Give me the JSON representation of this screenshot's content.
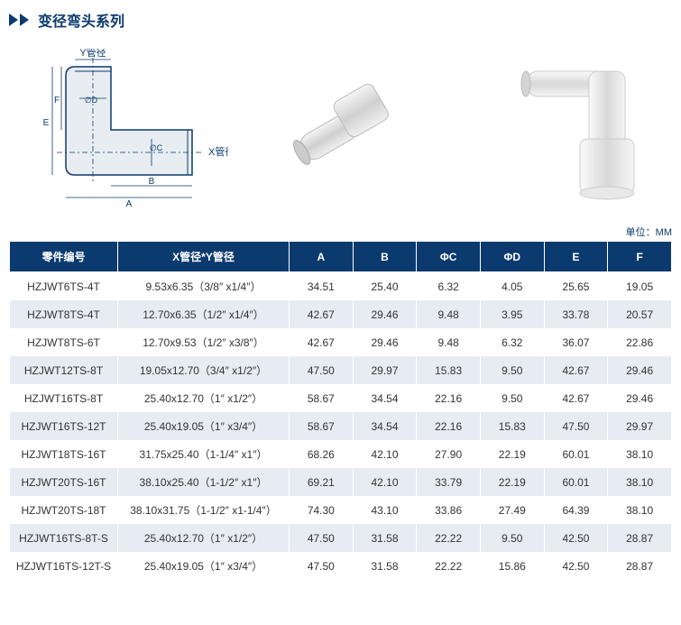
{
  "title": "变径弯头系列",
  "unit_label": "单位：MM",
  "diagram": {
    "labels": {
      "y_pipe": "Y管径",
      "x_pipe": "X管径",
      "A": "A",
      "B": "B",
      "D": "∅D",
      "C": "∅C",
      "E": "E",
      "F": "F"
    }
  },
  "table": {
    "headers": [
      "零件编号",
      "X管径*Y管径",
      "A",
      "B",
      "ΦC",
      "ΦD",
      "E",
      "F"
    ],
    "rows": [
      [
        "HZJWT6TS-4T",
        "9.53x6.35（3/8″ x1/4″）",
        "34.51",
        "25.40",
        "6.32",
        "4.05",
        "25.65",
        "19.05"
      ],
      [
        "HZJWT8TS-4T",
        "12.70x6.35（1/2″ x1/4″）",
        "42.67",
        "29.46",
        "9.48",
        "3.95",
        "33.78",
        "20.57"
      ],
      [
        "HZJWT8TS-6T",
        "12.70x9.53（1/2″ x3/8″）",
        "42.67",
        "29.46",
        "9.48",
        "6.32",
        "36.07",
        "22.86"
      ],
      [
        "HZJWT12TS-8T",
        "19.05x12.70（3/4″ x1/2″）",
        "47.50",
        "29.97",
        "15.83",
        "9.50",
        "42.67",
        "29.46"
      ],
      [
        "HZJWT16TS-8T",
        "25.40x12.70（1″ x1/2″）",
        "58.67",
        "34.54",
        "22.16",
        "9.50",
        "42.67",
        "29.46"
      ],
      [
        "HZJWT16TS-12T",
        "25.40x19.05（1″ x3/4″）",
        "58.67",
        "34.54",
        "22.16",
        "15.83",
        "47.50",
        "29.97"
      ],
      [
        "HZJWT18TS-16T",
        "31.75x25.40（1-1/4″ x1″）",
        "68.26",
        "42.10",
        "27.90",
        "22.19",
        "60.01",
        "38.10"
      ],
      [
        "HZJWT20TS-16T",
        "38.10x25.40（1-1/2″ x1″）",
        "69.21",
        "42.10",
        "33.79",
        "22.19",
        "60.01",
        "38.10"
      ],
      [
        "HZJWT20TS-18T",
        "38.10x31.75（1-1/2″ x1-1/4″）",
        "74.30",
        "43.10",
        "33.86",
        "27.49",
        "64.39",
        "38.10"
      ],
      [
        "HZJWT16TS-8T-S",
        "25.40x12.70（1″ x1/2″）",
        "47.50",
        "31.58",
        "22.22",
        "9.50",
        "42.50",
        "28.87"
      ],
      [
        "HZJWT16TS-12T-S",
        "25.40x19.05（1″ x3/4″）",
        "47.50",
        "31.58",
        "22.22",
        "15.86",
        "42.50",
        "28.87"
      ]
    ]
  }
}
